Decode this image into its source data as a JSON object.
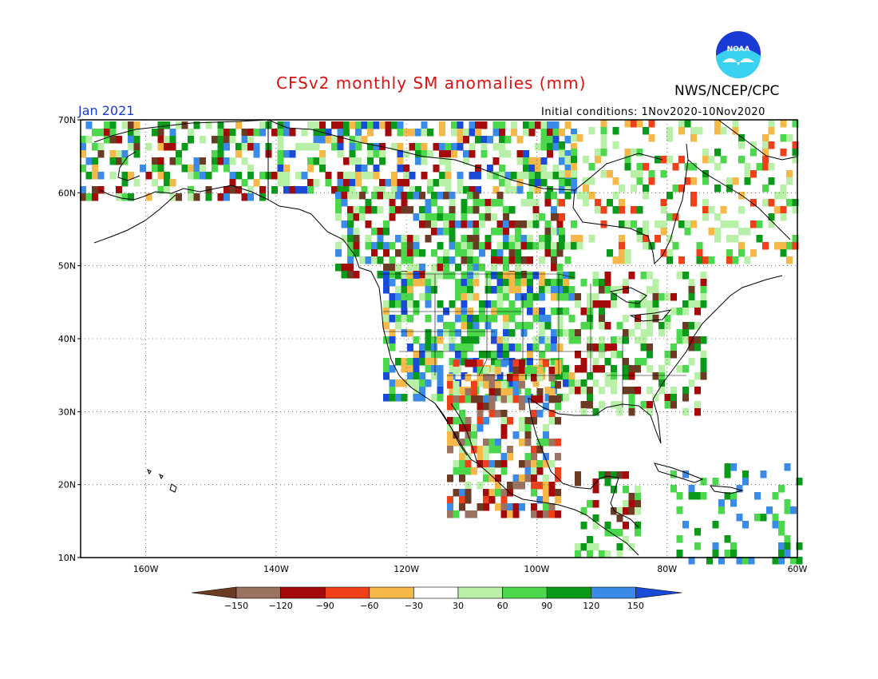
{
  "header": {
    "title": "CFSv2 monthly SM anomalies (mm)",
    "agency": "NWS/NCEP/CPC",
    "valid_month": "Jan 2021",
    "initial_conditions": "Initial conditions: 1Nov2020-10Nov2020",
    "logo_text": "NOAA"
  },
  "map": {
    "lat_range": [
      10,
      70
    ],
    "lon_range": [
      -170,
      -60
    ],
    "lat_labels": [
      "70N",
      "60N",
      "50N",
      "40N",
      "30N",
      "20N",
      "10N"
    ],
    "lon_labels": [
      "160W",
      "140W",
      "120W",
      "100W",
      "80W",
      "60W"
    ]
  },
  "legend": {
    "ticks": [
      "-150",
      "-120",
      "-90",
      "-60",
      "-30",
      "30",
      "60",
      "90",
      "120",
      "150"
    ],
    "colors": [
      "#6b3b23",
      "#9c7360",
      "#a40a0a",
      "#f0401a",
      "#f7b84a",
      "#ffffff",
      "#b8f0a8",
      "#4cd84c",
      "#0a9a1a",
      "#3a8ae8",
      "#1a4ad8"
    ]
  }
}
